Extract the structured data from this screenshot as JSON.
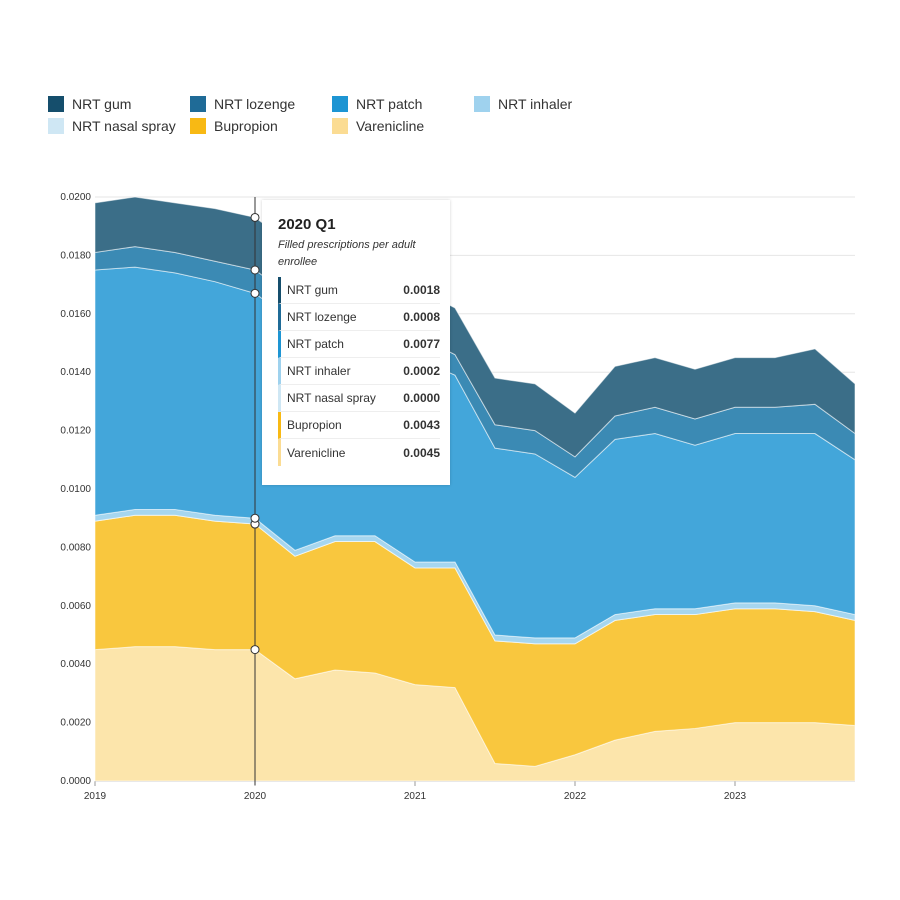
{
  "chart_data": {
    "type": "area",
    "stacked": true,
    "x": [
      "2019 Q1",
      "2019 Q2",
      "2019 Q3",
      "2019 Q4",
      "2020 Q1",
      "2020 Q2",
      "2020 Q3",
      "2020 Q4",
      "2021 Q1",
      "2021 Q2",
      "2021 Q3",
      "2021 Q4",
      "2022 Q1",
      "2022 Q2",
      "2022 Q3",
      "2022 Q4",
      "2023 Q1",
      "2023 Q2",
      "2023 Q3",
      "2023 Q4"
    ],
    "x_ticks": [
      "2019",
      "2020",
      "2021",
      "2022",
      "2023"
    ],
    "y_ticks": [
      "0.0000",
      "0.0020",
      "0.0040",
      "0.0060",
      "0.0080",
      "0.0100",
      "0.0120",
      "0.0140",
      "0.0160",
      "0.0180",
      "0.0200"
    ],
    "ylim": [
      0,
      0.02
    ],
    "grid": "horizontal",
    "legend_position": "top-left",
    "series": [
      {
        "name": "Varenicline",
        "color": "#fce5ab",
        "legend_color": "#fbdc93",
        "values": [
          0.0045,
          0.0046,
          0.0046,
          0.0045,
          0.0045,
          0.0035,
          0.0038,
          0.0037,
          0.0033,
          0.0032,
          0.0006,
          0.0005,
          0.0009,
          0.0014,
          0.0017,
          0.0018,
          0.002,
          0.002,
          0.002,
          0.0019
        ]
      },
      {
        "name": "Bupropion",
        "color": "#f9c73e",
        "legend_color": "#f8b914",
        "values": [
          0.0044,
          0.0045,
          0.0045,
          0.0044,
          0.0043,
          0.0042,
          0.0044,
          0.0045,
          0.004,
          0.0041,
          0.0042,
          0.0042,
          0.0038,
          0.0041,
          0.004,
          0.0039,
          0.0039,
          0.0039,
          0.0038,
          0.0036
        ]
      },
      {
        "name": "NRT nasal spray",
        "color": "#d3eaf6",
        "legend_color": "#cfe7f4",
        "values": [
          0,
          0,
          0,
          0,
          0,
          0,
          0,
          0,
          0,
          0,
          0,
          0,
          0,
          0,
          0,
          0,
          0,
          0,
          0,
          0
        ]
      },
      {
        "name": "NRT inhaler",
        "color": "#a6d6ef",
        "legend_color": "#9fd2ee",
        "values": [
          0.0002,
          0.0002,
          0.0002,
          0.0002,
          0.0002,
          0.0002,
          0.0002,
          0.0002,
          0.0002,
          0.0002,
          0.0002,
          0.0002,
          0.0002,
          0.0002,
          0.0002,
          0.0002,
          0.0002,
          0.0002,
          0.0002,
          0.0002
        ]
      },
      {
        "name": "NRT patch",
        "color": "#43a6da",
        "legend_color": "#1e95d3",
        "values": [
          0.0084,
          0.0083,
          0.0081,
          0.008,
          0.0077,
          0.0078,
          0.0074,
          0.0071,
          0.007,
          0.0064,
          0.0064,
          0.0063,
          0.0055,
          0.006,
          0.006,
          0.0056,
          0.0058,
          0.0058,
          0.0059,
          0.0053
        ]
      },
      {
        "name": "NRT lozenge",
        "color": "#3b8ab4",
        "legend_color": "#1f6b97",
        "values": [
          0.0006,
          0.0007,
          0.0007,
          0.0007,
          0.0008,
          0.0008,
          0.0008,
          0.0008,
          0.0008,
          0.0007,
          0.0008,
          0.0008,
          0.0007,
          0.0008,
          0.0009,
          0.0009,
          0.0009,
          0.0009,
          0.001,
          0.0009
        ]
      },
      {
        "name": "NRT gum",
        "color": "#3b6e88",
        "legend_color": "#154e6c",
        "values": [
          0.0017,
          0.0017,
          0.0017,
          0.0018,
          0.0018,
          0.0018,
          0.0017,
          0.0016,
          0.0016,
          0.0016,
          0.0016,
          0.0016,
          0.0015,
          0.0017,
          0.0017,
          0.0017,
          0.0017,
          0.0017,
          0.0019,
          0.0017
        ]
      }
    ]
  },
  "legend": [
    {
      "label": "NRT gum",
      "color": "#154e6c"
    },
    {
      "label": "NRT lozenge",
      "color": "#1f6b97"
    },
    {
      "label": "NRT patch",
      "color": "#1e95d3"
    },
    {
      "label": "NRT inhaler",
      "color": "#9fd2ee"
    },
    {
      "label": "NRT nasal spray",
      "color": "#cfe7f4"
    },
    {
      "label": "Bupropion",
      "color": "#f8b914"
    },
    {
      "label": "Varenicline",
      "color": "#fbdc93"
    }
  ],
  "tooltip": {
    "title": "2020 Q1",
    "subtitle": "Filled prescriptions per adult enrollee",
    "hover_index": 4,
    "rows": [
      {
        "label": "NRT gum",
        "value": "0.0018",
        "color": "#154e6c"
      },
      {
        "label": "NRT lozenge",
        "value": "0.0008",
        "color": "#1f6b97"
      },
      {
        "label": "NRT patch",
        "value": "0.0077",
        "color": "#1e95d3"
      },
      {
        "label": "NRT inhaler",
        "value": "0.0002",
        "color": "#9fd2ee"
      },
      {
        "label": "NRT nasal spray",
        "value": "0.0000",
        "color": "#cfe7f4"
      },
      {
        "label": "Bupropion",
        "value": "0.0043",
        "color": "#f8b914"
      },
      {
        "label": "Varenicline",
        "value": "0.0045",
        "color": "#fbdc93"
      }
    ]
  }
}
